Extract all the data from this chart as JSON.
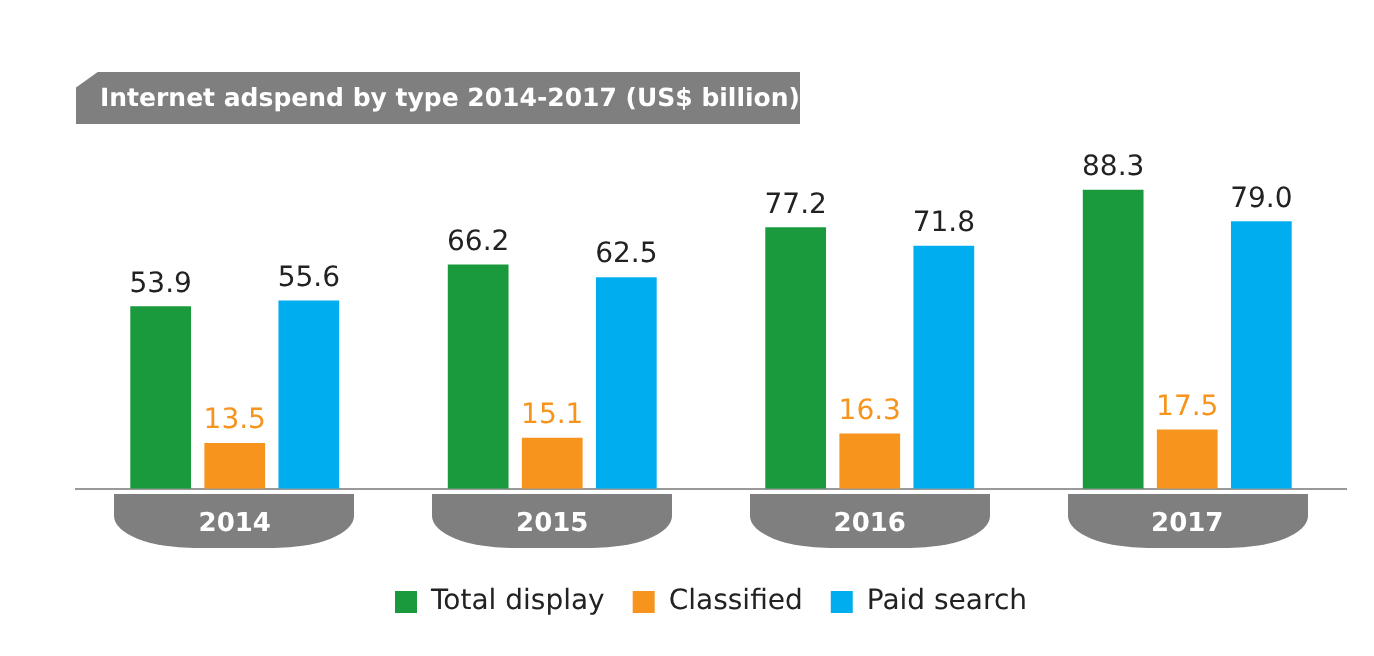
{
  "chart_data": {
    "type": "bar",
    "title": "Internet adspend by type 2014-2017 (US$ billion)",
    "categories": [
      "2014",
      "2015",
      "2016",
      "2017"
    ],
    "series": [
      {
        "name": "Total display",
        "color": "#1a9a3c",
        "values": [
          53.9,
          66.2,
          77.2,
          88.3
        ]
      },
      {
        "name": "Classified",
        "color": "#f7941d",
        "values": [
          13.5,
          15.1,
          16.3,
          17.5
        ]
      },
      {
        "name": "Paid search",
        "color": "#00aeef",
        "values": [
          55.6,
          62.5,
          71.8,
          79.0
        ],
        "value_labels": [
          "55.6",
          "62.5",
          "71.8",
          "79.0"
        ]
      }
    ],
    "data_labels": true,
    "legend": "bottom",
    "grid": false
  }
}
